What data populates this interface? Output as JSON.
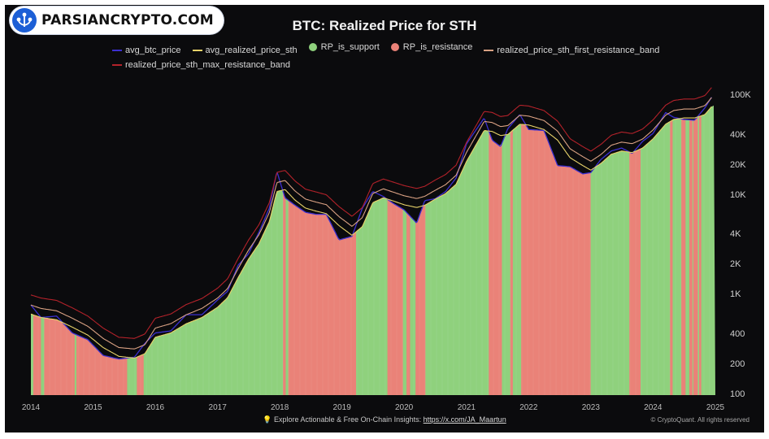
{
  "watermark": {
    "brand_text": "PARSIANCRYPTO.COM"
  },
  "chart_data": {
    "type": "line",
    "title": "BTC: Realized Price for STH",
    "xlabel": "",
    "ylabel": "",
    "y_scale": "log",
    "ylim": [
      100,
      140000
    ],
    "xlim": [
      "2014-01-01",
      "2025-01-01"
    ],
    "grid": false,
    "legend_position": "top",
    "x_tick_labels": [
      "2014",
      "2015",
      "2016",
      "2017",
      "2018",
      "2019",
      "2020",
      "2021",
      "2022",
      "2023",
      "2024",
      "2025"
    ],
    "y_tick_labels": [
      "100K",
      "40K",
      "20K",
      "10K",
      "4K",
      "2K",
      "1K",
      "400",
      "200",
      "100"
    ],
    "y_tick_values": [
      100000,
      40000,
      20000,
      10000,
      4000,
      2000,
      1000,
      400,
      200,
      100
    ],
    "legend": [
      {
        "name": "avg_btc_price",
        "marker": "line",
        "color": "#3c2fd0"
      },
      {
        "name": "avg_realized_price_sth",
        "marker": "line",
        "color": "#e8d36a"
      },
      {
        "name": "RP_is_support",
        "marker": "dot",
        "color": "#8fd17d"
      },
      {
        "name": "RP_is_resistance",
        "marker": "dot",
        "color": "#ea8278"
      },
      {
        "name": "realized_price_sth_first_resistance_band",
        "marker": "line",
        "color": "#d9a183"
      },
      {
        "name": "realized_price_sth_max_resistance_band",
        "marker": "line",
        "color": "#b3222a"
      }
    ],
    "x": [
      "2014-01-01",
      "2014-03-01",
      "2014-06-01",
      "2014-09-01",
      "2014-12-01",
      "2015-03-01",
      "2015-06-01",
      "2015-09-01",
      "2015-11-01",
      "2016-01-01",
      "2016-04-01",
      "2016-07-01",
      "2016-10-01",
      "2017-01-01",
      "2017-03-01",
      "2017-05-01",
      "2017-07-01",
      "2017-09-01",
      "2017-11-01",
      "2017-12-15",
      "2018-02-01",
      "2018-04-01",
      "2018-06-01",
      "2018-08-01",
      "2018-10-01",
      "2018-12-15",
      "2019-03-01",
      "2019-05-01",
      "2019-07-01",
      "2019-09-01",
      "2019-11-01",
      "2020-01-01",
      "2020-03-15",
      "2020-05-01",
      "2020-07-01",
      "2020-09-01",
      "2020-11-01",
      "2021-01-01",
      "2021-04-15",
      "2021-06-01",
      "2021-07-20",
      "2021-09-01",
      "2021-11-10",
      "2022-01-01",
      "2022-04-01",
      "2022-06-20",
      "2022-09-01",
      "2022-11-15",
      "2023-01-01",
      "2023-03-01",
      "2023-05-01",
      "2023-07-01",
      "2023-09-01",
      "2023-11-01",
      "2024-01-01",
      "2024-03-15",
      "2024-05-01",
      "2024-07-01",
      "2024-09-01",
      "2024-11-01",
      "2024-12-15"
    ],
    "series": [
      {
        "name": "avg_btc_price",
        "values": [
          800,
          600,
          620,
          420,
          360,
          250,
          230,
          240,
          330,
          420,
          440,
          640,
          640,
          900,
          1100,
          2000,
          2600,
          4300,
          7500,
          17500,
          9500,
          8000,
          6800,
          6500,
          6500,
          3600,
          3900,
          7500,
          11000,
          9800,
          8300,
          7200,
          5300,
          8900,
          9300,
          11000,
          15000,
          33000,
          60000,
          36000,
          31000,
          47000,
          65000,
          46000,
          45000,
          20000,
          19500,
          16500,
          17000,
          23000,
          28000,
          30000,
          26500,
          35000,
          42000,
          68000,
          61000,
          58000,
          57000,
          76000,
          100000
        ]
      },
      {
        "name": "avg_realized_price_sth",
        "values": [
          650,
          600,
          570,
          480,
          400,
          300,
          245,
          235,
          260,
          380,
          420,
          520,
          600,
          760,
          950,
          1500,
          2300,
          3300,
          5500,
          11000,
          11500,
          9000,
          7500,
          7000,
          6600,
          5000,
          4000,
          4900,
          8500,
          9500,
          8800,
          8100,
          7600,
          8000,
          9200,
          10500,
          13000,
          22000,
          45000,
          44000,
          40000,
          41000,
          52000,
          51000,
          46000,
          36000,
          24000,
          20000,
          18000,
          21000,
          26000,
          28000,
          27000,
          30000,
          37000,
          52000,
          58000,
          60000,
          60000,
          65000,
          80000
        ]
      },
      {
        "name": "realized_price_sth_first_resistance_band",
        "values": [
          800,
          740,
          700,
          590,
          490,
          370,
          300,
          290,
          320,
          470,
          520,
          640,
          740,
          940,
          1170,
          1850,
          2830,
          4060,
          6770,
          13500,
          14200,
          11100,
          9230,
          8620,
          8120,
          6150,
          4920,
          6030,
          10500,
          11700,
          10800,
          9970,
          9350,
          9840,
          11300,
          12900,
          16000,
          27100,
          55400,
          54100,
          49200,
          50400,
          64000,
          62700,
          56600,
          44300,
          29500,
          24600,
          22100,
          25800,
          32000,
          34400,
          33200,
          36900,
          45500,
          64000,
          71300,
          73800,
          73800,
          80000,
          98400
        ]
      },
      {
        "name": "realized_price_sth_max_resistance_band",
        "values": [
          1010,
          940,
          890,
          750,
          620,
          470,
          380,
          370,
          410,
          590,
          650,
          810,
          930,
          1180,
          1470,
          2330,
          3570,
          5120,
          8530,
          17100,
          17900,
          14000,
          11600,
          10900,
          10200,
          7750,
          6200,
          7600,
          13200,
          14700,
          13600,
          12600,
          11800,
          12400,
          14300,
          16300,
          20200,
          34100,
          69800,
          68200,
          62000,
          63600,
          80600,
          79100,
          71300,
          55800,
          37200,
          31000,
          27900,
          32600,
          40300,
          43400,
          41900,
          46500,
          57400,
          80600,
          89900,
          93000,
          93000,
          100800,
          124000
        ]
      }
    ],
    "regime_bands": {
      "legend_support": "RP_is_support",
      "legend_resistance": "RP_is_resistance",
      "resistance_periods": [
        [
          "2014-01-15",
          "2014-03-01"
        ],
        [
          "2014-03-20",
          "2014-09-15"
        ],
        [
          "2014-09-25",
          "2015-07-20"
        ],
        [
          "2015-09-15",
          "2015-10-25"
        ],
        [
          "2018-01-20",
          "2018-02-05"
        ],
        [
          "2018-02-20",
          "2019-03-25"
        ],
        [
          "2019-09-25",
          "2019-12-25"
        ],
        [
          "2020-01-15",
          "2020-02-05"
        ],
        [
          "2020-03-08",
          "2020-05-05"
        ],
        [
          "2021-05-12",
          "2021-07-28"
        ],
        [
          "2021-09-15",
          "2021-09-30"
        ],
        [
          "2021-11-18",
          "2022-12-31"
        ],
        [
          "2023-08-15",
          "2023-10-20"
        ],
        [
          "2024-04-10",
          "2024-04-25"
        ],
        [
          "2024-06-15",
          "2024-07-10"
        ],
        [
          "2024-08-01",
          "2024-08-20"
        ],
        [
          "2024-08-25",
          "2024-09-20"
        ],
        [
          "2024-09-28",
          "2024-10-10"
        ]
      ]
    }
  },
  "footer": {
    "cta_prefix": "Explore Actionable & Free On-Chain Insights:",
    "cta_link": "https://x.com/JA_Maartun",
    "copyright": "© CryptoQuant. All rights reserved"
  }
}
